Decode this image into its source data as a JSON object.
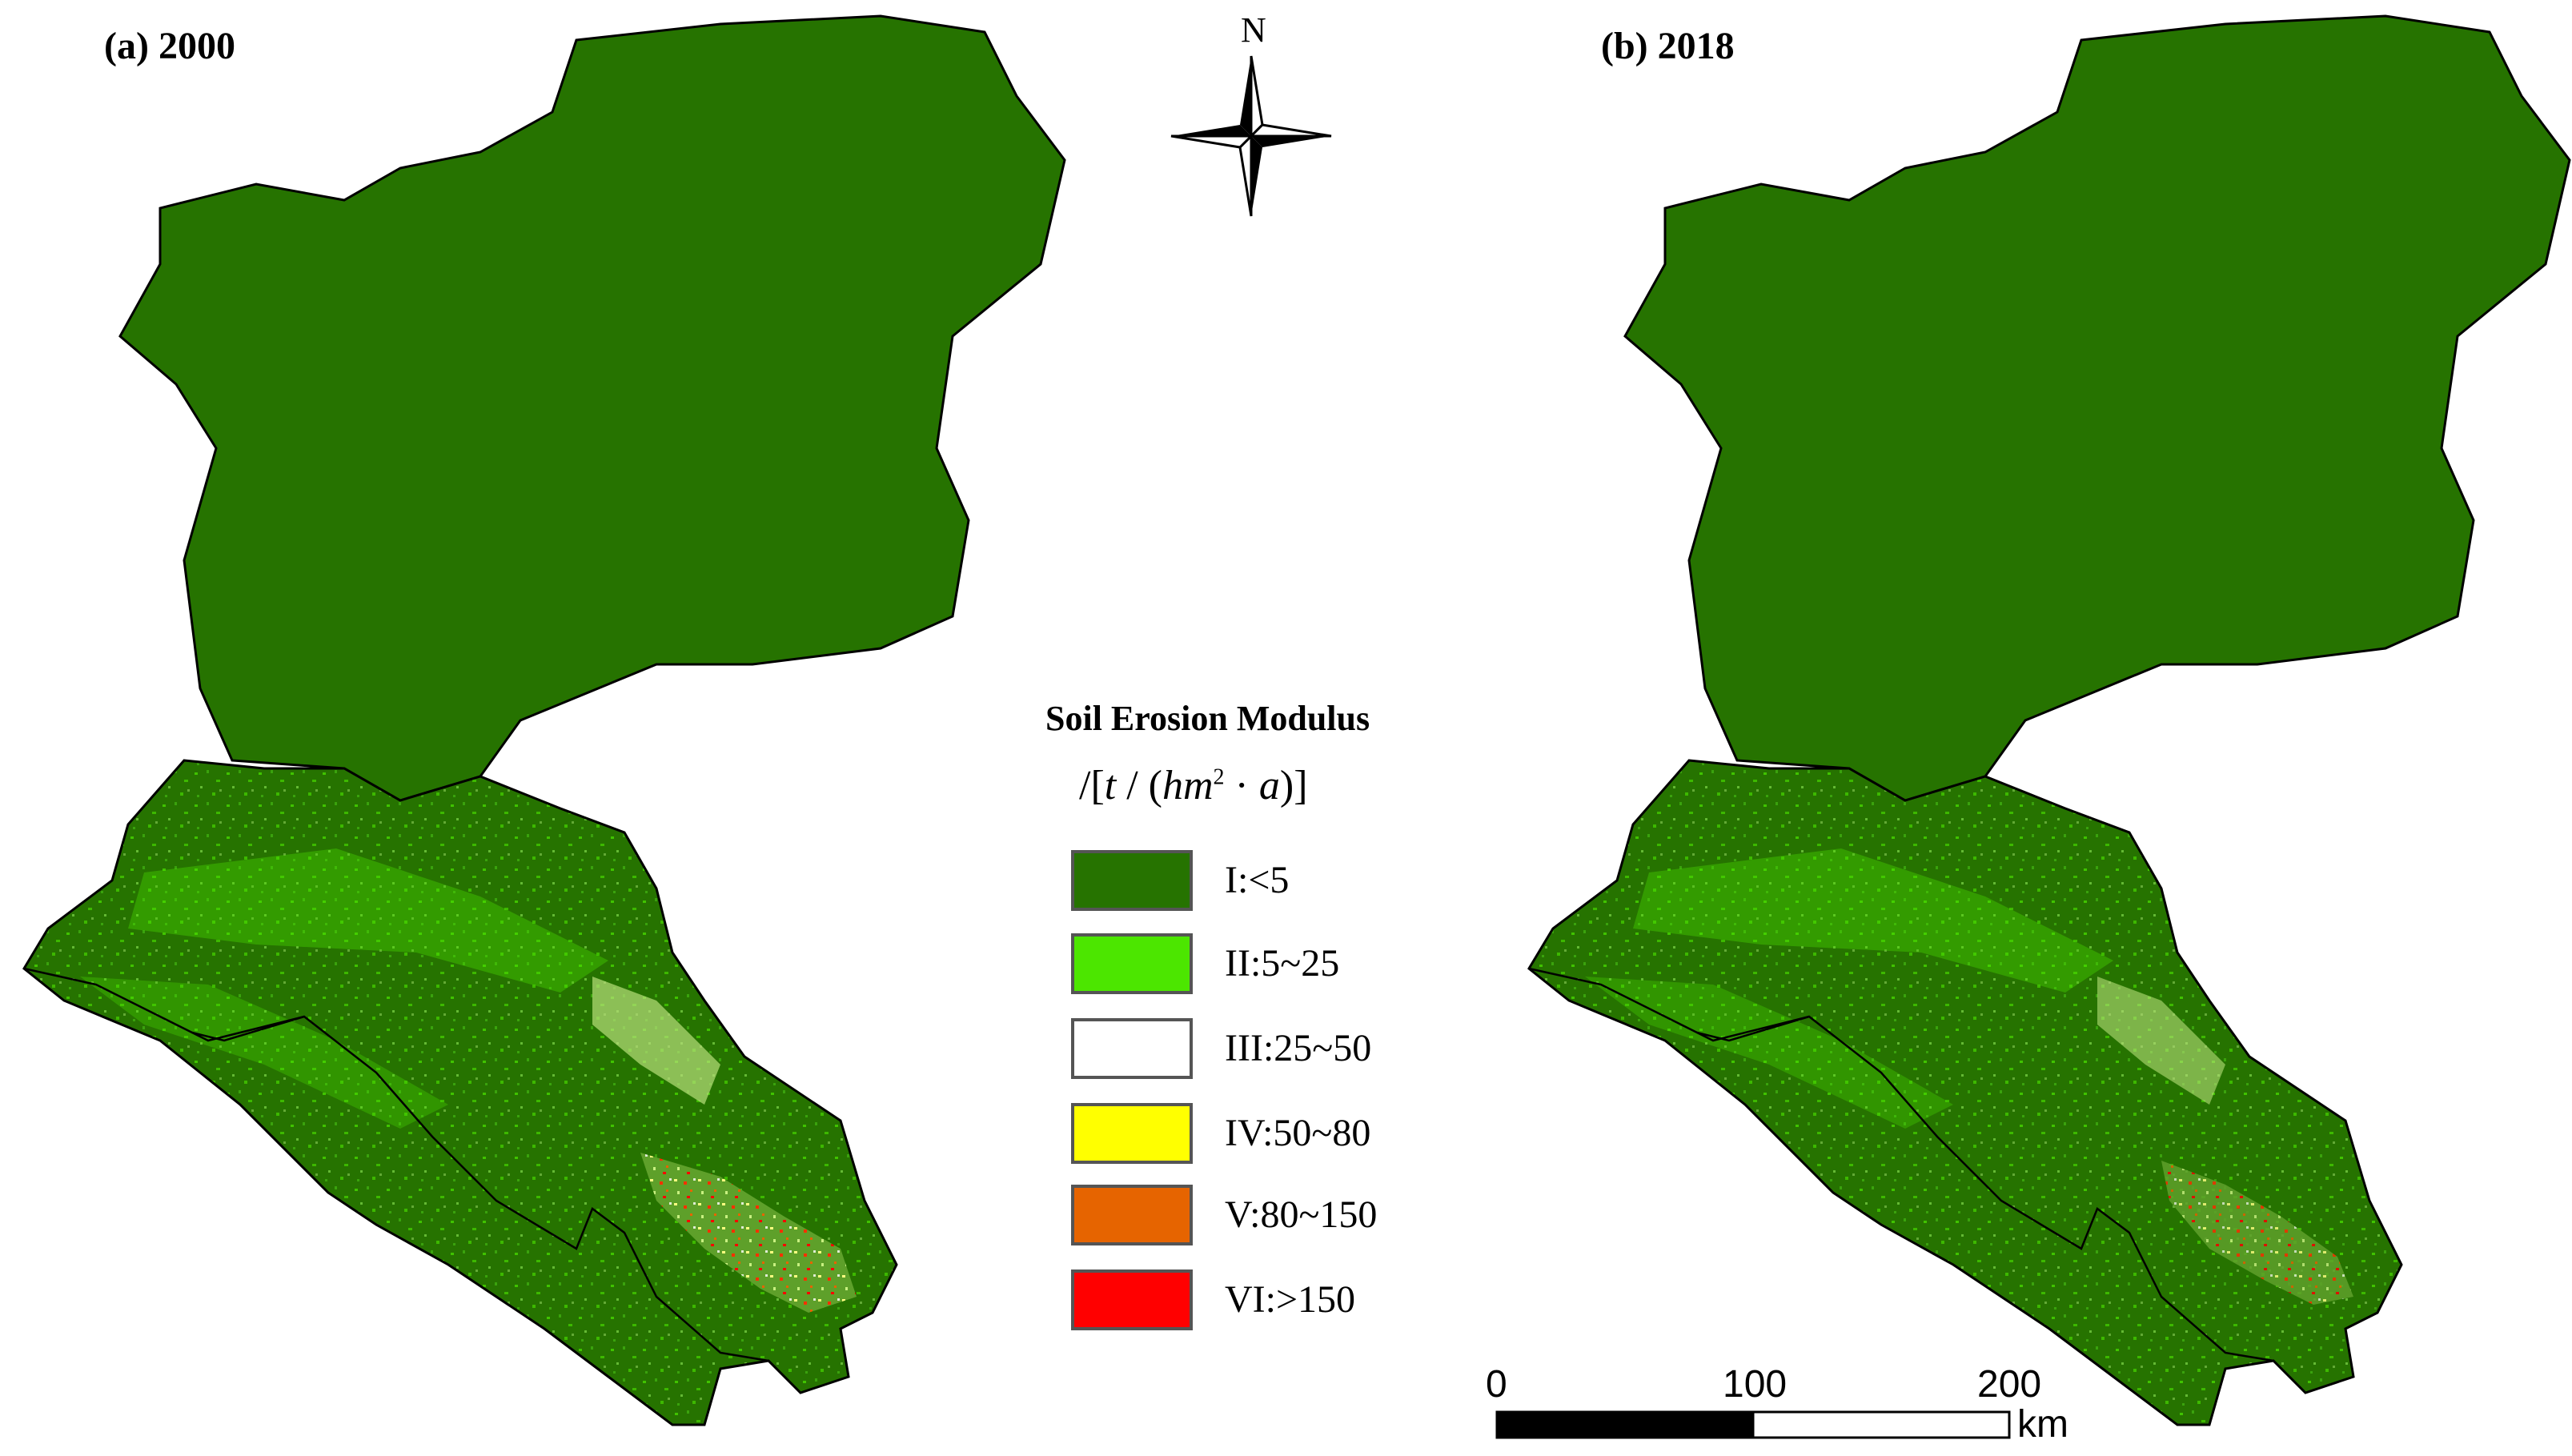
{
  "panels": [
    {
      "title": "(a) 2000"
    },
    {
      "title": "(b) 2018"
    }
  ],
  "north_arrow": {
    "label": "N"
  },
  "legend": {
    "title": "Soil Erosion Modulus",
    "items": [
      {
        "label": "I:<5",
        "color": "#267300"
      },
      {
        "label": "II:5~25",
        "color": "#4ce600"
      },
      {
        "label": "III:25~50",
        "color": "#ffffff"
      },
      {
        "label": "IV:50~80",
        "color": "#ffff00"
      },
      {
        "label": "V:80~150",
        "color": "#e66400"
      },
      {
        "label": "VI:>150",
        "color": "#ff0000"
      }
    ]
  },
  "scale_bar": {
    "ticks": [
      "0",
      "100",
      "200"
    ],
    "unit": "km"
  },
  "colors": {
    "base_green": "#267300",
    "boundary": "#000000"
  }
}
